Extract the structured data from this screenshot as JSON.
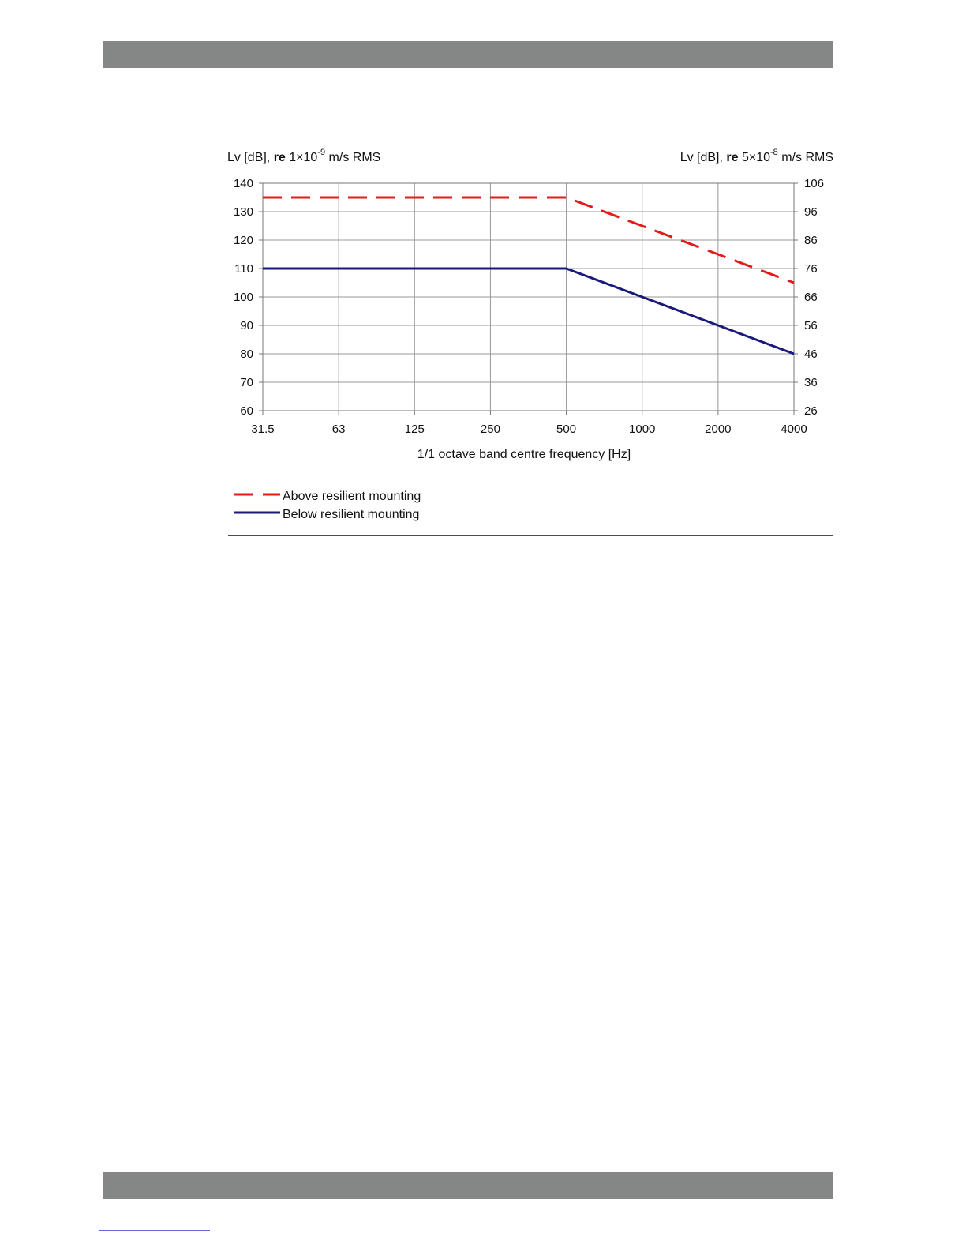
{
  "chart_data": {
    "type": "line",
    "x_categories": [
      "31.5",
      "63",
      "125",
      "250",
      "500",
      "1000",
      "2000",
      "4000"
    ],
    "xlabel": "1/1 octave band centre frequency [Hz]",
    "ylabel_left": {
      "prefix": "Lv [dB], ",
      "bold": "re",
      "base": " 1×10",
      "exponent": "-9",
      "suffix": " m/s RMS"
    },
    "ylabel_right": {
      "prefix": "Lv [dB], ",
      "bold": "re",
      "base": " 5×10",
      "exponent": "-8",
      "suffix": " m/s RMS"
    },
    "ylim_left": [
      60,
      140
    ],
    "ylim_right": [
      26,
      106
    ],
    "yticks_left": [
      "60",
      "70",
      "80",
      "90",
      "100",
      "110",
      "120",
      "130",
      "140"
    ],
    "yticks_right": [
      "26",
      "36",
      "46",
      "56",
      "66",
      "76",
      "86",
      "96",
      "106"
    ],
    "grid": true,
    "legend_position": "bottom-left",
    "series": [
      {
        "name": "Above resilient mounting",
        "color": "#e31b1b",
        "style": "dashed",
        "values": [
          135,
          135,
          135,
          135,
          135,
          125,
          115,
          105
        ]
      },
      {
        "name": "Below resilient mounting",
        "color": "#1a1a7a",
        "style": "solid",
        "values": [
          110,
          110,
          110,
          110,
          110,
          100,
          90,
          80
        ]
      }
    ]
  }
}
